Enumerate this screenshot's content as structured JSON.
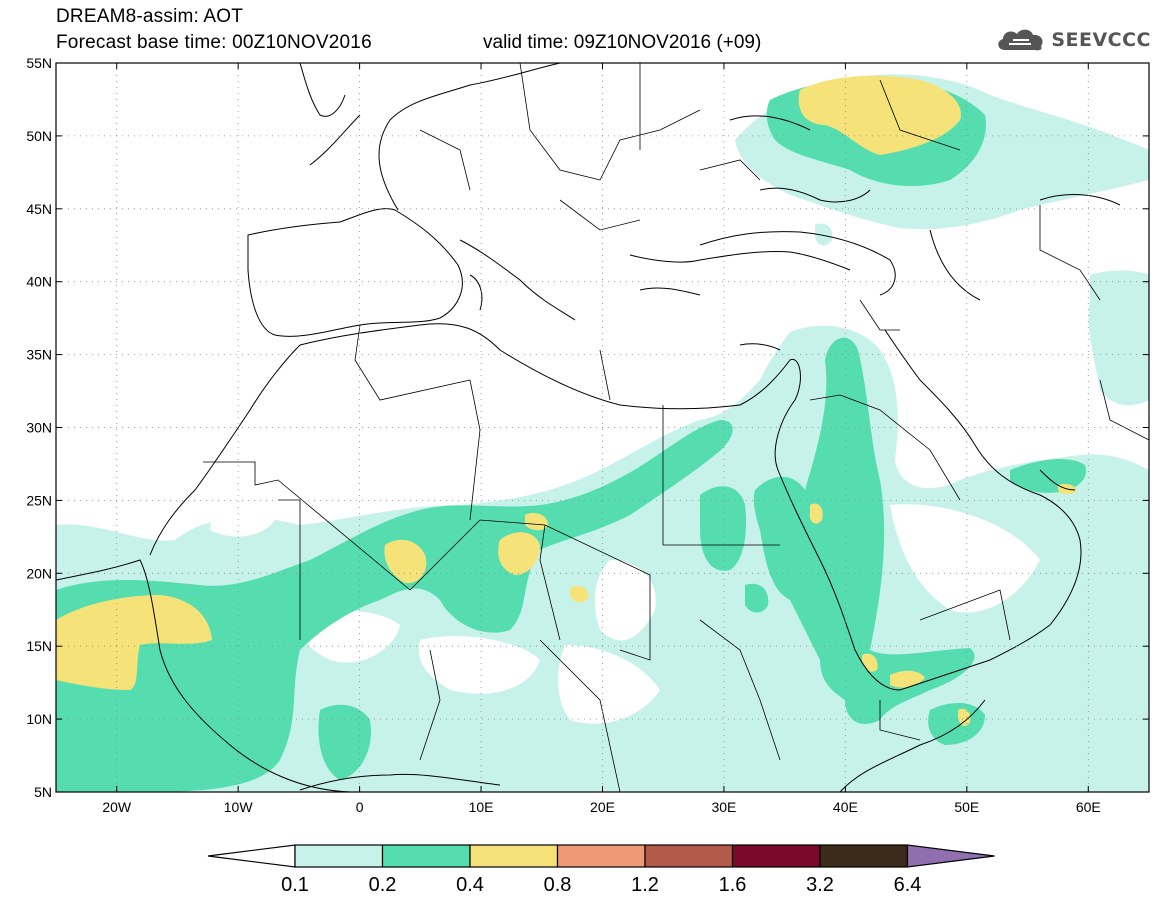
{
  "header": {
    "title_line1": "DREAM8-assim: AOT",
    "title_line2": "Forecast base time: 00Z10NOV2016",
    "valid_time": "valid time: 09Z10NOV2016 (+09)",
    "logo_text": "SEEVCCC",
    "logo_icon": "cloud-icon"
  },
  "map": {
    "lon_range": [
      -25,
      65
    ],
    "lat_range": [
      5,
      55
    ],
    "lat_labels": [
      "55N",
      "50N",
      "45N",
      "40N",
      "35N",
      "30N",
      "25N",
      "20N",
      "15N",
      "10N",
      "5N"
    ],
    "lon_labels": [
      "20W",
      "10W",
      "0",
      "10E",
      "20E",
      "30E",
      "40E",
      "50E",
      "60E"
    ],
    "grid": "dotted"
  },
  "legend": {
    "type": "colorbar",
    "colors": [
      "#ffffff",
      "#c6f2ea",
      "#55ddb0",
      "#f5e37a",
      "#ef9a74",
      "#b25a4a",
      "#7a0a2c",
      "#3b2b1a",
      "#8f6fae"
    ],
    "labels": [
      "0.1",
      "0.2",
      "0.4",
      "0.8",
      "1.2",
      "1.6",
      "3.2",
      "6.4"
    ]
  }
}
